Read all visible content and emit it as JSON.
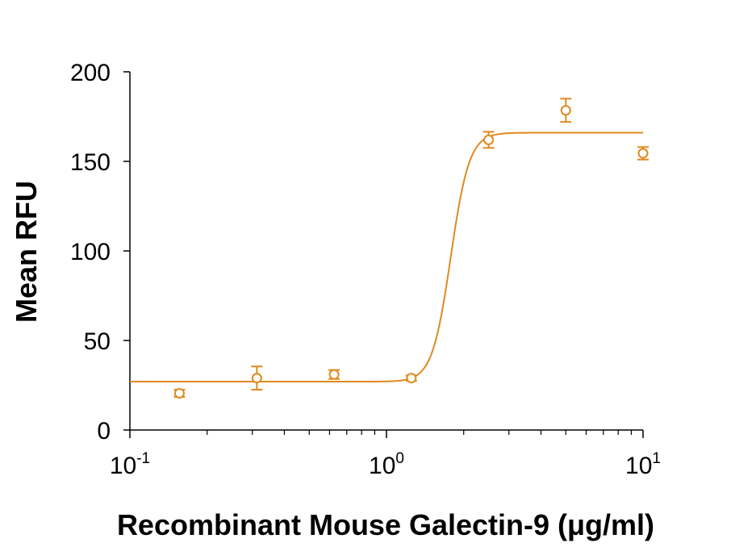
{
  "chart_data": {
    "type": "scatter",
    "title": "",
    "xlabel": "Recombinant Mouse Galectin-9 (μg/ml)",
    "ylabel": "Mean RFU",
    "xscale": "log",
    "xlim": [
      0.1,
      10
    ],
    "ylim": [
      0,
      200
    ],
    "xticks": [
      {
        "value": 0.1,
        "base": "10",
        "exp": "-1"
      },
      {
        "value": 1,
        "base": "10",
        "exp": "0"
      },
      {
        "value": 10,
        "base": "10",
        "exp": "1"
      }
    ],
    "yticks": [
      {
        "value": 0,
        "label": "0"
      },
      {
        "value": 50,
        "label": "50"
      },
      {
        "value": 100,
        "label": "100"
      },
      {
        "value": 150,
        "label": "150"
      },
      {
        "value": 200,
        "label": "200"
      }
    ],
    "grid": false,
    "legend": "none",
    "color": "#e08a1e",
    "series": [
      {
        "points": [
          {
            "x": 0.156,
            "y": 20.5,
            "err": 2
          },
          {
            "x": 0.3125,
            "y": 29,
            "err": 6.5
          },
          {
            "x": 0.625,
            "y": 31,
            "err": 2.5
          },
          {
            "x": 1.25,
            "y": 29,
            "err": 1.5
          },
          {
            "x": 2.5,
            "y": 162,
            "err": 4.5
          },
          {
            "x": 5,
            "y": 178.5,
            "err": 6.5
          },
          {
            "x": 10,
            "y": 154.5,
            "err": 3.5
          }
        ],
        "fit": {
          "model": "4PL",
          "bottom": 27,
          "top": 166,
          "ec50": 1.78,
          "hill": 12
        }
      }
    ]
  }
}
